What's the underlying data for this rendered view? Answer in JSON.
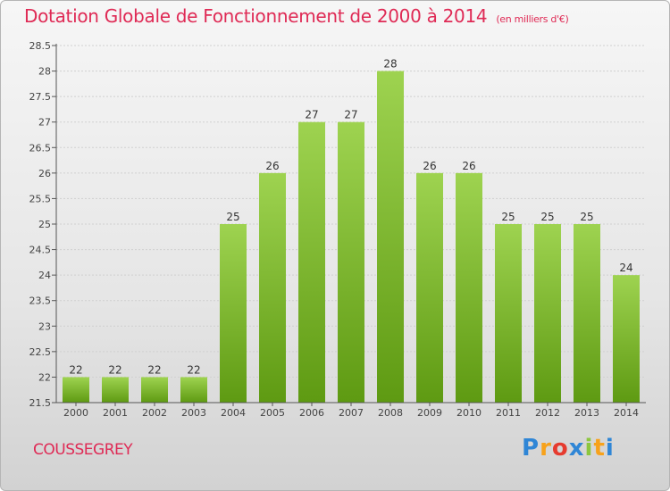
{
  "chart_data": {
    "type": "bar",
    "title": "Dotation Globale de Fonctionnement de 2000 à 2014",
    "subtitle": "(en milliers d'€)",
    "categories": [
      "2000",
      "2001",
      "2002",
      "2003",
      "2004",
      "2005",
      "2006",
      "2007",
      "2008",
      "2009",
      "2010",
      "2011",
      "2012",
      "2013",
      "2014"
    ],
    "values": [
      22,
      22,
      22,
      22,
      25,
      26,
      27,
      27,
      28,
      26,
      26,
      25,
      25,
      25,
      24
    ],
    "value_labels": [
      "22",
      "22",
      "22",
      "22",
      "25",
      "26",
      "27",
      "27",
      "28",
      "26",
      "26",
      "25",
      "25",
      "25",
      "24"
    ],
    "ylim": [
      21.5,
      28.5
    ],
    "yticks": [
      21.5,
      22,
      22.5,
      23,
      23.5,
      24,
      24.5,
      25,
      25.5,
      26,
      26.5,
      27,
      27.5,
      28,
      28.5
    ],
    "ytick_labels": [
      "21.5",
      "22",
      "22.5",
      "23",
      "23.5",
      "24",
      "24.5",
      "25",
      "25.5",
      "26",
      "26.5",
      "27",
      "27.5",
      "28",
      "28.5"
    ],
    "xlabel": "",
    "ylabel": "",
    "grid": true,
    "legend": "none"
  },
  "commune": "COUSSEGREY",
  "logo": {
    "text": "Proxiti",
    "letters": [
      "P",
      "r",
      "o",
      "x",
      "i",
      "t",
      "i"
    ],
    "letter_colors": [
      "#2f86d6",
      "#f7a21b",
      "#e63b2f",
      "#2f86d6",
      "#8cc63f",
      "#f7a21b",
      "#2f86d6"
    ]
  },
  "colors": {
    "bar_top": "#9ed350",
    "bar_bottom": "#5e9a12",
    "text": "#df2a55",
    "axis": "#555555",
    "grid": "#d0d0d0"
  }
}
